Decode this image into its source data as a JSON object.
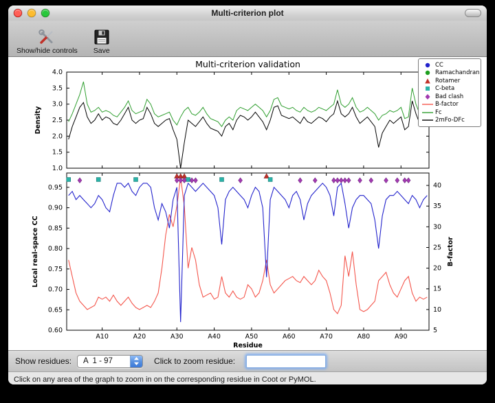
{
  "window": {
    "title": "Multi-criterion plot",
    "toolbar": [
      {
        "label": "Show/hide controls",
        "icon": "tools-icon"
      },
      {
        "label": "Save",
        "icon": "save-icon"
      }
    ],
    "controls": {
      "show_residues_label": "Show residues:",
      "residue_range_value": "A  1 - 97",
      "zoom_label": "Click to zoom residue:",
      "zoom_input_value": ""
    },
    "status_bar": "Click on any area of the graph to zoom in on the corresponding residue in Coot or PyMOL."
  },
  "figure": {
    "title": "Multi-criterion validation",
    "legend": [
      {
        "label": "CC",
        "shape": "circle",
        "color": "#2222cc"
      },
      {
        "label": "Ramachandran",
        "shape": "circle",
        "color": "#1e9e1e"
      },
      {
        "label": "Rotamer",
        "shape": "triangle",
        "color": "#c03028"
      },
      {
        "label": "C-beta",
        "shape": "square",
        "color": "#2ab3a8"
      },
      {
        "label": "Bad clash",
        "shape": "diamond",
        "color": "#a239b0"
      },
      {
        "label": "B-factor",
        "shape": "line",
        "color": "#f4554b"
      },
      {
        "label": "Fc",
        "shape": "line",
        "color": "#2e9e2e"
      },
      {
        "label": "2mFo-DFc",
        "shape": "line",
        "color": "#000000"
      }
    ]
  },
  "chart_data": [
    {
      "type": "line",
      "title": "Multi-criterion validation",
      "xlabel": "",
      "ylabel": "Density",
      "ylim": [
        1.0,
        4.0
      ],
      "yticks": [
        1.0,
        1.5,
        2.0,
        2.5,
        3.0,
        3.5,
        4.0
      ],
      "x_range": [
        1,
        97
      ],
      "series": [
        {
          "name": "Fc",
          "color": "#2e9e2e",
          "values": [
            2.45,
            2.7,
            3.0,
            3.3,
            3.7,
            3.0,
            2.75,
            2.8,
            2.9,
            2.75,
            2.8,
            2.75,
            2.65,
            2.6,
            2.75,
            2.9,
            3.1,
            2.8,
            2.7,
            2.75,
            2.8,
            3.15,
            3.0,
            2.7,
            2.6,
            2.65,
            2.7,
            2.75,
            2.5,
            2.35,
            2.6,
            2.8,
            2.9,
            2.7,
            2.65,
            2.75,
            2.9,
            2.7,
            2.55,
            2.5,
            2.45,
            2.3,
            2.5,
            2.6,
            2.5,
            2.8,
            2.9,
            2.85,
            2.8,
            2.9,
            3.0,
            2.9,
            2.8,
            2.6,
            2.8,
            3.15,
            3.2,
            2.95,
            2.9,
            2.85,
            2.9,
            2.8,
            2.75,
            2.9,
            2.8,
            2.75,
            2.8,
            2.9,
            2.85,
            2.8,
            2.9,
            3.0,
            3.45,
            3.0,
            2.9,
            3.0,
            3.2,
            2.9,
            2.75,
            2.8,
            2.9,
            2.8,
            2.7,
            2.5,
            2.65,
            2.7,
            2.8,
            2.75,
            2.8,
            2.9,
            2.55,
            2.6,
            3.5,
            3.0,
            2.7,
            3.3,
            3.55
          ]
        },
        {
          "name": "2mFo-DFc",
          "color": "#000000",
          "values": [
            1.9,
            2.3,
            2.6,
            2.9,
            3.05,
            2.6,
            2.4,
            2.5,
            2.7,
            2.5,
            2.6,
            2.55,
            2.4,
            2.35,
            2.5,
            2.7,
            2.9,
            2.5,
            2.4,
            2.5,
            2.55,
            2.9,
            2.7,
            2.4,
            2.3,
            2.4,
            2.5,
            2.55,
            2.2,
            1.9,
            1.0,
            1.8,
            2.5,
            2.4,
            2.3,
            2.45,
            2.6,
            2.4,
            2.25,
            2.2,
            2.15,
            2.0,
            2.3,
            2.4,
            2.2,
            2.5,
            2.65,
            2.6,
            2.5,
            2.6,
            2.75,
            2.6,
            2.45,
            2.2,
            2.5,
            2.9,
            2.95,
            2.65,
            2.6,
            2.55,
            2.6,
            2.5,
            2.4,
            2.6,
            2.45,
            2.4,
            2.5,
            2.6,
            2.55,
            2.45,
            2.6,
            2.7,
            3.1,
            2.7,
            2.6,
            2.7,
            2.9,
            2.6,
            2.4,
            2.5,
            2.6,
            2.45,
            2.3,
            1.65,
            2.1,
            2.3,
            2.5,
            2.4,
            2.5,
            2.6,
            2.2,
            2.3,
            3.1,
            2.7,
            2.4,
            2.9,
            3.1
          ]
        }
      ]
    },
    {
      "type": "line",
      "xlabel": "Residue",
      "ylabel_left": "Local real-space CC",
      "ylabel_right": "B-factor",
      "ylim_left": [
        0.6,
        0.985
      ],
      "yticks_left": [
        0.6,
        0.65,
        0.7,
        0.75,
        0.8,
        0.85,
        0.9,
        0.95
      ],
      "ylim_right": [
        5,
        43
      ],
      "yticks_right": [
        5,
        10,
        15,
        20,
        25,
        30,
        35,
        40
      ],
      "x_range": [
        1,
        97
      ],
      "xticks": [
        10,
        20,
        30,
        40,
        50,
        60,
        70,
        80,
        90
      ],
      "xtick_labels": [
        "A10",
        "A20",
        "A30",
        "A40",
        "A50",
        "A60",
        "A70",
        "A80",
        "A90"
      ],
      "series": [
        {
          "name": "CC",
          "axis": "left",
          "color": "#2222cc",
          "values": [
            0.93,
            0.94,
            0.92,
            0.93,
            0.92,
            0.91,
            0.9,
            0.91,
            0.93,
            0.92,
            0.9,
            0.89,
            0.93,
            0.96,
            0.96,
            0.95,
            0.96,
            0.94,
            0.93,
            0.95,
            0.96,
            0.96,
            0.95,
            0.9,
            0.87,
            0.91,
            0.89,
            0.85,
            0.92,
            0.95,
            0.62,
            0.93,
            0.96,
            0.95,
            0.94,
            0.95,
            0.96,
            0.95,
            0.94,
            0.93,
            0.9,
            0.81,
            0.92,
            0.94,
            0.95,
            0.94,
            0.93,
            0.92,
            0.9,
            0.93,
            0.95,
            0.94,
            0.9,
            0.73,
            0.92,
            0.95,
            0.94,
            0.93,
            0.92,
            0.9,
            0.93,
            0.94,
            0.92,
            0.87,
            0.91,
            0.93,
            0.94,
            0.95,
            0.96,
            0.95,
            0.93,
            0.88,
            0.95,
            0.96,
            0.91,
            0.85,
            0.9,
            0.92,
            0.93,
            0.93,
            0.92,
            0.91,
            0.87,
            0.8,
            0.88,
            0.92,
            0.93,
            0.93,
            0.94,
            0.93,
            0.92,
            0.91,
            0.93,
            0.92,
            0.9,
            0.92,
            0.93
          ]
        },
        {
          "name": "B-factor",
          "axis": "right",
          "color": "#f4554b",
          "values": [
            22,
            18,
            14,
            12,
            11,
            10,
            10.5,
            11,
            13,
            12.5,
            13,
            12,
            13.5,
            12,
            11,
            12,
            13,
            11.5,
            10.5,
            10,
            10.5,
            11,
            10.5,
            12,
            14,
            20,
            28,
            33,
            30,
            35,
            42,
            35,
            20,
            25,
            22,
            16,
            13,
            13.5,
            14,
            12.5,
            13,
            18,
            14,
            13,
            14.5,
            13,
            12.5,
            13,
            16,
            15,
            13,
            14,
            17,
            22,
            16,
            14,
            15,
            16,
            17,
            17.5,
            18,
            17,
            16.5,
            18,
            17,
            16,
            17,
            19.5,
            18,
            17,
            14,
            10,
            9,
            11,
            23,
            18,
            24,
            16,
            10,
            9.5,
            10,
            11,
            12,
            17,
            18,
            19,
            16,
            14,
            13,
            15,
            17,
            18,
            14,
            12,
            13,
            12.5,
            13
          ]
        }
      ],
      "markers": [
        {
          "name": "Rotamer",
          "shape": "triangle",
          "color": "#c03028",
          "y": 0.977,
          "residues": [
            30,
            31,
            32,
            54
          ]
        },
        {
          "name": "C-beta",
          "shape": "square",
          "color": "#2ab3a8",
          "y": 0.969,
          "residues": [
            1,
            9,
            19,
            33,
            42,
            55
          ]
        },
        {
          "name": "Bad clash",
          "shape": "diamond",
          "color": "#a239b0",
          "y": 0.967,
          "residues": [
            4,
            30,
            31,
            32,
            34,
            35,
            47,
            63,
            67,
            72,
            73,
            74,
            75,
            76,
            79,
            82,
            86,
            89,
            91,
            92
          ]
        }
      ]
    }
  ]
}
